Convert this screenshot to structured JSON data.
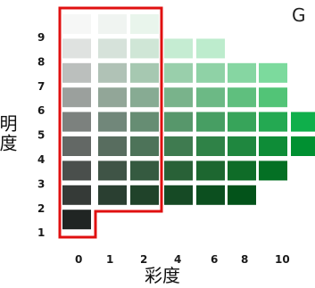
{
  "chart_data": {
    "type": "heatmap",
    "hue_label": "G",
    "ylabel": "明度",
    "xlabel": "彩度",
    "chroma_ticks": [
      "0",
      "1",
      "2",
      "4",
      "6",
      "8",
      "10"
    ],
    "value_ticks": [
      "1",
      "2",
      "3",
      "4",
      "5",
      "6",
      "7",
      "8",
      "9"
    ],
    "highlight": {
      "color": "#e01010",
      "chroma_max": 2,
      "value_min_chroma0": 1,
      "value_min_chroma12": 2
    },
    "rows": [
      {
        "value": 9,
        "cells": [
          {
            "chroma": 0,
            "color": "#f6f7f6"
          },
          {
            "chroma": 1,
            "color": "#f0f4f1"
          },
          {
            "chroma": 2,
            "color": "#e9f5ec"
          }
        ]
      },
      {
        "value": 8,
        "cells": [
          {
            "chroma": 0,
            "color": "#dfe2e0"
          },
          {
            "chroma": 1,
            "color": "#d6e2da"
          },
          {
            "chroma": 2,
            "color": "#cfe6d6"
          },
          {
            "chroma": 4,
            "color": "#c5ecd2"
          },
          {
            "chroma": 6,
            "color": "#bdeccd"
          }
        ]
      },
      {
        "value": 7,
        "cells": [
          {
            "chroma": 0,
            "color": "#bbbfbd"
          },
          {
            "chroma": 1,
            "color": "#b0c2b6"
          },
          {
            "chroma": 2,
            "color": "#a6c8b1"
          },
          {
            "chroma": 4,
            "color": "#99cfab"
          },
          {
            "chroma": 6,
            "color": "#8fd2a6"
          },
          {
            "chroma": 8,
            "color": "#86d6a2"
          },
          {
            "chroma": 10,
            "color": "#7cda9d"
          }
        ]
      },
      {
        "value": 6,
        "cells": [
          {
            "chroma": 0,
            "color": "#9ba09d"
          },
          {
            "chroma": 1,
            "color": "#92a698"
          },
          {
            "chroma": 2,
            "color": "#87ab93"
          },
          {
            "chroma": 4,
            "color": "#79b38b"
          },
          {
            "chroma": 6,
            "color": "#6cb985"
          },
          {
            "chroma": 8,
            "color": "#5fbf7e"
          },
          {
            "chroma": 10,
            "color": "#52c477"
          }
        ]
      },
      {
        "value": 5,
        "cells": [
          {
            "chroma": 0,
            "color": "#7c817e"
          },
          {
            "chroma": 1,
            "color": "#71877a"
          },
          {
            "chroma": 2,
            "color": "#668d73"
          },
          {
            "chroma": 4,
            "color": "#57976b"
          },
          {
            "chroma": 6,
            "color": "#479e63"
          },
          {
            "chroma": 8,
            "color": "#37a45a"
          },
          {
            "chroma": 10,
            "color": "#24a952"
          },
          {
            "chroma": 12,
            "color": "#0faf4b"
          }
        ]
      },
      {
        "value": 4,
        "cells": [
          {
            "chroma": 0,
            "color": "#636865"
          },
          {
            "chroma": 1,
            "color": "#586d5f"
          },
          {
            "chroma": 2,
            "color": "#4d7359"
          },
          {
            "chroma": 4,
            "color": "#3f7b50"
          },
          {
            "chroma": 6,
            "color": "#2f8247"
          },
          {
            "chroma": 8,
            "color": "#1f873f"
          },
          {
            "chroma": 10,
            "color": "#0e8c37"
          },
          {
            "chroma": 12,
            "color": "#009031"
          }
        ]
      },
      {
        "value": 3,
        "cells": [
          {
            "chroma": 0,
            "color": "#4a4f4c"
          },
          {
            "chroma": 1,
            "color": "#3f5446"
          },
          {
            "chroma": 2,
            "color": "#355a40"
          },
          {
            "chroma": 4,
            "color": "#296137"
          },
          {
            "chroma": 6,
            "color": "#1d6730"
          },
          {
            "chroma": 8,
            "color": "#0f6c28"
          },
          {
            "chroma": 10,
            "color": "#047024"
          }
        ]
      },
      {
        "value": 2,
        "cells": [
          {
            "chroma": 0,
            "color": "#353a37"
          },
          {
            "chroma": 1,
            "color": "#2a3f31"
          },
          {
            "chroma": 2,
            "color": "#20432a"
          },
          {
            "chroma": 4,
            "color": "#164a25"
          },
          {
            "chroma": 6,
            "color": "#0c4f1f"
          },
          {
            "chroma": 8,
            "color": "#03531a"
          }
        ]
      },
      {
        "value": 1,
        "cells": [
          {
            "chroma": 0,
            "color": "#202523"
          }
        ]
      }
    ]
  }
}
